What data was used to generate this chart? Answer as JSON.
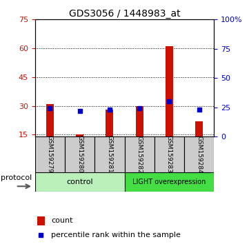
{
  "title": "GDS3056 / 1448983_at",
  "samples": [
    "GSM159279",
    "GSM159280",
    "GSM159281",
    "GSM159282",
    "GSM159283",
    "GSM159284"
  ],
  "count_values": [
    31,
    15,
    28,
    30,
    61,
    22
  ],
  "percentile_values": [
    24,
    22,
    23,
    24,
    30,
    23
  ],
  "count_base": 14,
  "ylim_left": [
    14,
    75
  ],
  "ylim_right": [
    0,
    100
  ],
  "yticks_left": [
    15,
    30,
    45,
    60,
    75
  ],
  "yticks_right": [
    0,
    25,
    50,
    75,
    100
  ],
  "ytick_labels_right": [
    "0",
    "25",
    "50",
    "75",
    "100%"
  ],
  "bar_width": 0.25,
  "count_color": "#cc1100",
  "percentile_color": "#0000cc",
  "plot_bg": "white",
  "tick_label_color_left": "#cc1100",
  "tick_label_color_right": "#0000cc",
  "protocol_label": "protocol",
  "legend_count": "count",
  "legend_percentile": "percentile rank within the sample",
  "control_color": "#bbf0bb",
  "light_color": "#44dd44",
  "sample_box_color": "#cccccc"
}
